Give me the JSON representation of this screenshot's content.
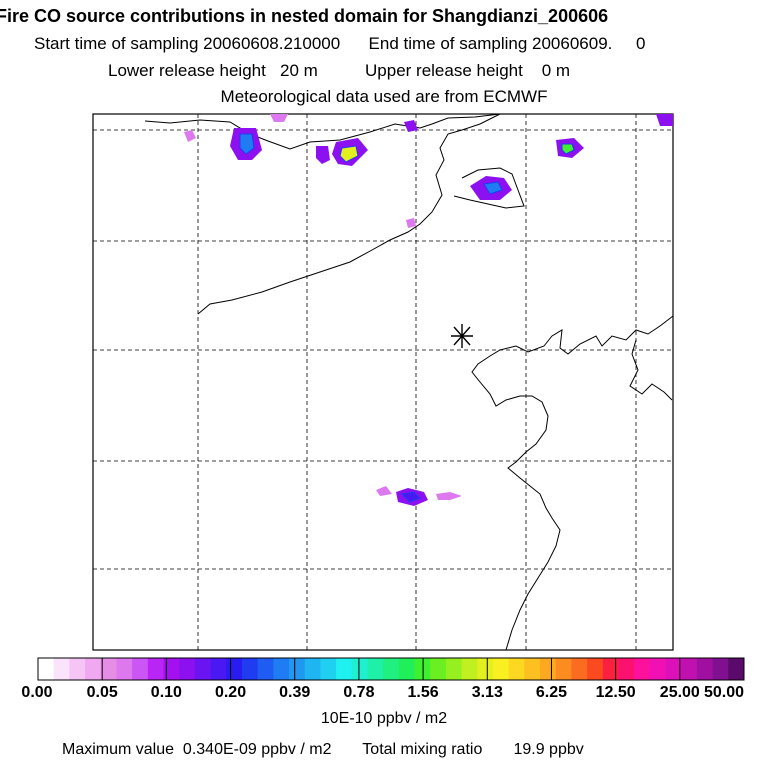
{
  "header": {
    "title": "Fire CO source contributions in nested domain for Shangdianzi_200606",
    "sampling": "Start time of sampling 20060608.210000      End time of sampling 20060609.     0",
    "release": "Lower release height   20 m          Upper release height    0 m",
    "met": "Meteorological data used are from ECMWF"
  },
  "colorbar": {
    "labels": [
      "0.00",
      "0.05",
      "0.10",
      "0.20",
      "0.39",
      "0.78",
      "1.56",
      "3.13",
      "6.25",
      "12.50",
      "25.00",
      "50.00"
    ],
    "colors": [
      "#ffffff",
      "#fbe3fb",
      "#f6c5f6",
      "#f0a8f0",
      "#e68ee6",
      "#dd78ee",
      "#cc55f5",
      "#b825f5",
      "#a510f0",
      "#8c10f0",
      "#6a14f2",
      "#4a18f2",
      "#2a1cf0",
      "#1f3cf0",
      "#1f5cf2",
      "#1f7cf2",
      "#1f98f2",
      "#1fb4f2",
      "#1fd0f0",
      "#1ff0f0",
      "#1ff0d0",
      "#1ff0a8",
      "#1ff080",
      "#1ff05a",
      "#3ef030",
      "#6af020",
      "#96f020",
      "#c0f020",
      "#e2f020",
      "#f8f020",
      "#fcd820",
      "#fcc020",
      "#fca820",
      "#fc8c20",
      "#fc6c20",
      "#fc4a20",
      "#fc2040",
      "#fc1070",
      "#fc109c",
      "#f010b4",
      "#dc10b8",
      "#c010b0",
      "#a010a0",
      "#801090",
      "#5a0a6a"
    ]
  },
  "units": "10E-10 ppbv / m2",
  "footer": "Maximum value  0.340E-09 ppbv / m2       Total mixing ratio       19.9 ppbv",
  "map": {
    "receptor_symbol": "asterisk",
    "plumes": [
      {
        "id": "p1",
        "level": 0.2
      },
      {
        "id": "p2",
        "level": 1.56
      },
      {
        "id": "p3",
        "level": 0.78
      },
      {
        "id": "p4",
        "level": 0.2
      },
      {
        "id": "p5",
        "level": 0.78
      },
      {
        "id": "p6",
        "level": 0.2
      },
      {
        "id": "p7",
        "level": 0.1
      },
      {
        "id": "p8",
        "level": 0.2
      },
      {
        "id": "p9",
        "level": 0.05
      }
    ]
  }
}
